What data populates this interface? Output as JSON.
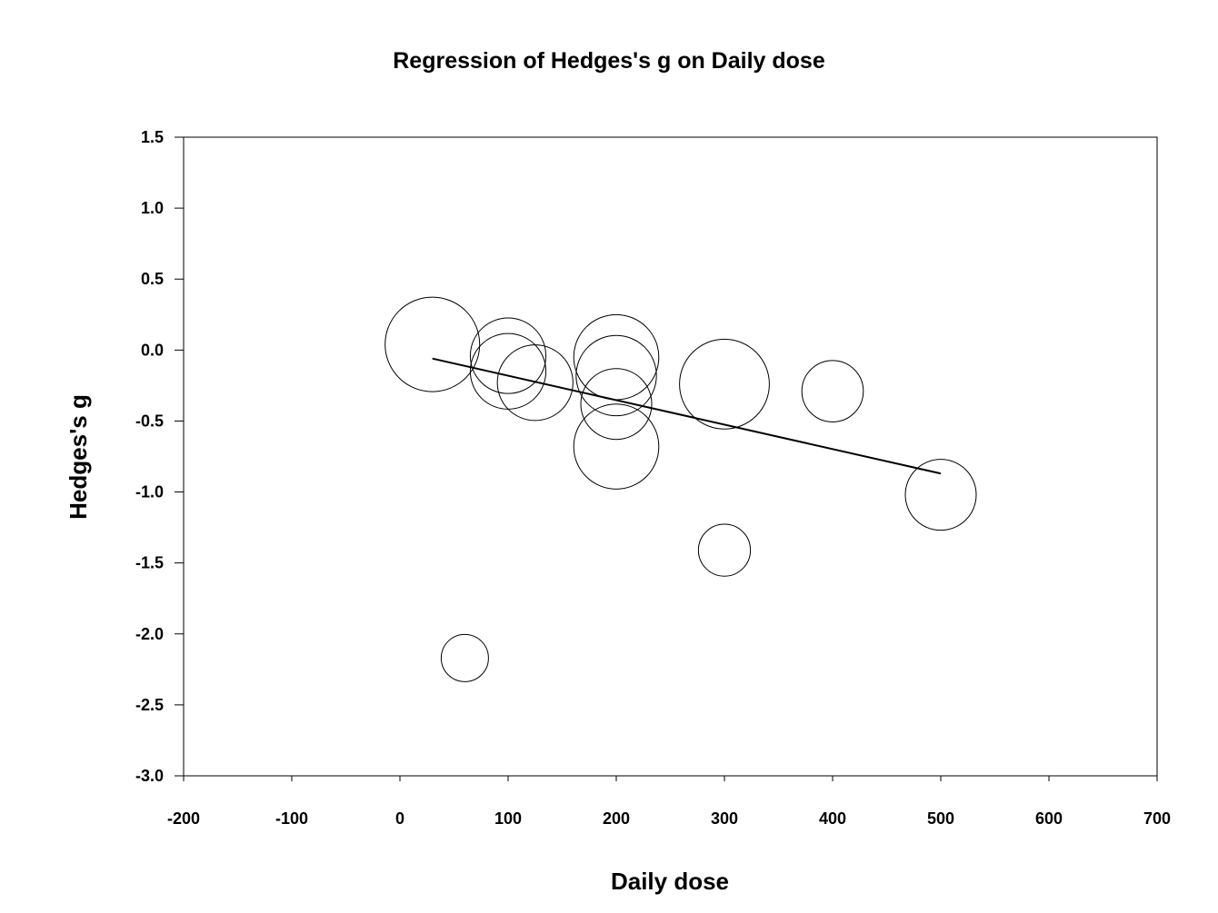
{
  "chart_data": {
    "type": "scatter",
    "title": "Regression of Hedges's g on Daily dose",
    "xlabel": "Daily dose",
    "ylabel": "Hedges's g",
    "xlim": [
      -200,
      700
    ],
    "ylim": [
      -3.0,
      1.5
    ],
    "x_ticks": [
      "-200",
      "-100",
      "0",
      "100",
      "200",
      "300",
      "400",
      "500",
      "600",
      "700"
    ],
    "y_ticks": [
      "1.5",
      "1.0",
      "0.5",
      "0.0",
      "-0.5",
      "-1.0",
      "-1.5",
      "-2.0",
      "-2.5",
      "-3.0"
    ],
    "grid": false,
    "points": [
      {
        "x": 30,
        "y": 0.04,
        "weight": 1.0
      },
      {
        "x": 60,
        "y": -2.17,
        "weight": 0.5
      },
      {
        "x": 100,
        "y": -0.04,
        "weight": 0.8
      },
      {
        "x": 100,
        "y": -0.15,
        "weight": 0.8
      },
      {
        "x": 125,
        "y": -0.23,
        "weight": 0.8
      },
      {
        "x": 200,
        "y": -0.05,
        "weight": 0.9
      },
      {
        "x": 200,
        "y": -0.18,
        "weight": 0.85
      },
      {
        "x": 200,
        "y": -0.38,
        "weight": 0.75
      },
      {
        "x": 200,
        "y": -0.68,
        "weight": 0.9
      },
      {
        "x": 300,
        "y": -0.24,
        "weight": 0.95
      },
      {
        "x": 300,
        "y": -1.41,
        "weight": 0.55
      },
      {
        "x": 400,
        "y": -0.29,
        "weight": 0.65
      },
      {
        "x": 500,
        "y": -1.02,
        "weight": 0.75
      }
    ],
    "regression_line": {
      "x": [
        30,
        500
      ],
      "y": [
        -0.06,
        -0.87
      ]
    }
  }
}
